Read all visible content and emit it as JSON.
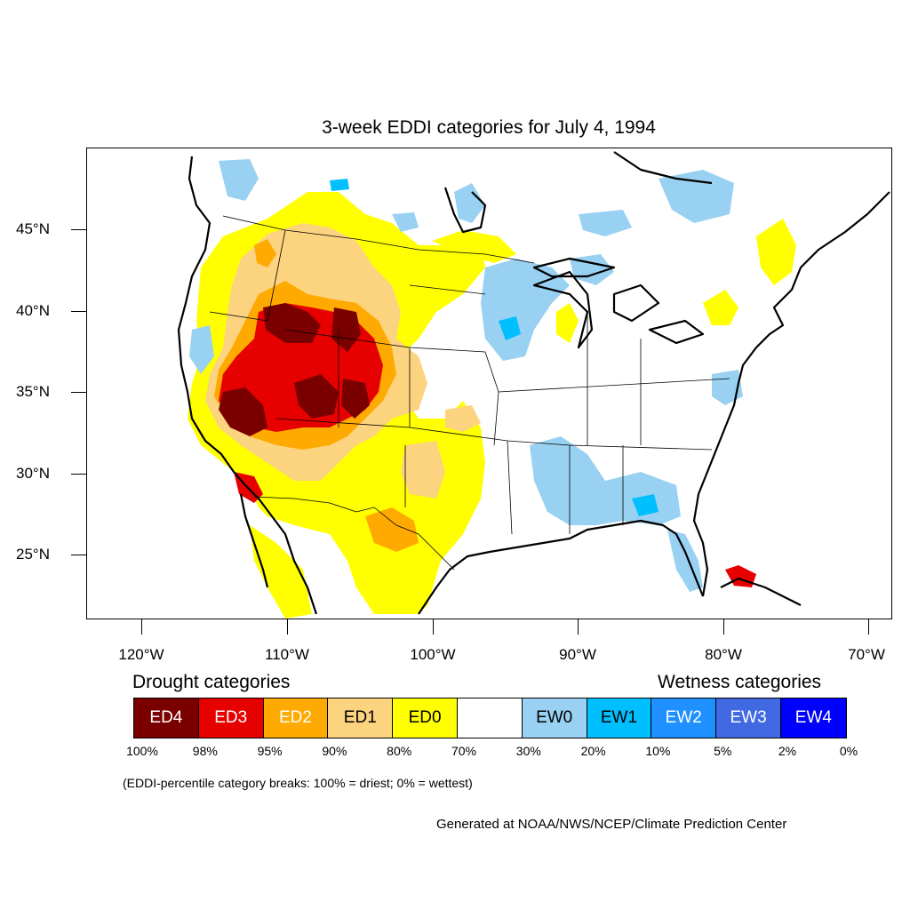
{
  "title": "3-week EDDI categories for July 4, 1994",
  "lat_labels": [
    "45°N",
    "40°N",
    "35°N",
    "30°N",
    "25°N"
  ],
  "lon_labels": [
    "120°W",
    "110°W",
    "100°W",
    "90°W",
    "80°W",
    "70°W"
  ],
  "drought_title": "Drought categories",
  "wetness_title": "Wetness categories",
  "legend": [
    {
      "label": "ED4",
      "color": "#7a0000",
      "text_color": "#ffffff"
    },
    {
      "label": "ED3",
      "color": "#e60000",
      "text_color": "#ffffff"
    },
    {
      "label": "ED2",
      "color": "#ffaa00",
      "text_color": "#ffffff"
    },
    {
      "label": "ED1",
      "color": "#fcd37f",
      "text_color": "#000000"
    },
    {
      "label": "ED0",
      "color": "#ffff00",
      "text_color": "#000000"
    },
    {
      "label": "",
      "color": "#ffffff",
      "text_color": "#000000"
    },
    {
      "label": "EW0",
      "color": "#99d1f2",
      "text_color": "#000000"
    },
    {
      "label": "EW1",
      "color": "#00bfff",
      "text_color": "#000000"
    },
    {
      "label": "EW2",
      "color": "#1e90ff",
      "text_color": "#ffffff"
    },
    {
      "label": "EW3",
      "color": "#4169e1",
      "text_color": "#ffffff"
    },
    {
      "label": "EW4",
      "color": "#0000ff",
      "text_color": "#ffffff"
    }
  ],
  "percentiles": [
    "100%",
    "98%",
    "95%",
    "90%",
    "80%",
    "70%",
    "30%",
    "20%",
    "10%",
    "5%",
    "2%",
    "0%"
  ],
  "note": "(EDDI-percentile category breaks: 100% = driest; 0% = wettest)",
  "credit": "Generated at NOAA/NWS/NCEP/Climate Prediction Center"
}
